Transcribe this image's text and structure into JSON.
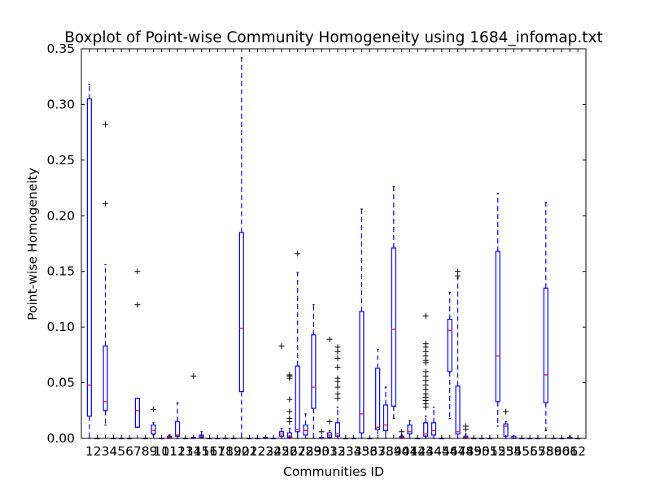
{
  "chart_data": {
    "type": "boxplot",
    "title": "Boxplot of Point-wise Community Homogeneity using 1684_infomap.txt",
    "xlabel": "Communities ID",
    "ylabel": "Point-wise Homogeneity",
    "ylim": [
      0,
      0.35
    ],
    "yticks": [
      "0.00",
      "0.05",
      "0.10",
      "0.15",
      "0.20",
      "0.25",
      "0.30",
      "0.35"
    ],
    "colors": {
      "box": "#0000ff",
      "median": "#ff0000",
      "flier": "#000000"
    },
    "categories": [
      "1",
      "2",
      "3",
      "4",
      "5",
      "6",
      "7",
      "8",
      "9",
      "10",
      "11",
      "12",
      "13",
      "14",
      "15",
      "16",
      "17",
      "18",
      "19",
      "20",
      "21",
      "22",
      "23",
      "24",
      "25",
      "26",
      "27",
      "28",
      "29",
      "30",
      "31",
      "32",
      "33",
      "34",
      "35",
      "36",
      "37",
      "38",
      "39",
      "40",
      "41",
      "42",
      "43",
      "44",
      "45",
      "46",
      "47",
      "48",
      "49",
      "50",
      "51",
      "52",
      "53",
      "54",
      "55",
      "56",
      "57",
      "58",
      "59",
      "60",
      "61",
      "62"
    ],
    "boxes": [
      {
        "id": "1",
        "whislo": 0.0,
        "q1": 0.02,
        "med": 0.048,
        "q3": 0.305,
        "whishi": 0.318,
        "fliers": []
      },
      {
        "id": "2",
        "whislo": 0.0,
        "q1": 0.0,
        "med": 0.0,
        "q3": 0.0,
        "whishi": 0.0,
        "fliers": []
      },
      {
        "id": "3",
        "whislo": 0.012,
        "q1": 0.025,
        "med": 0.033,
        "q3": 0.083,
        "whishi": 0.156,
        "fliers": [
          0.211,
          0.282
        ]
      },
      {
        "id": "4",
        "whislo": 0.0,
        "q1": 0.0,
        "med": 0.0,
        "q3": 0.0,
        "whishi": 0.0,
        "fliers": []
      },
      {
        "id": "5",
        "whislo": 0.0,
        "q1": 0.0,
        "med": 0.0,
        "q3": 0.0,
        "whishi": 0.0,
        "fliers": []
      },
      {
        "id": "6",
        "whislo": 0.0,
        "q1": 0.0,
        "med": 0.0,
        "q3": 0.0,
        "whishi": 0.0,
        "fliers": []
      },
      {
        "id": "7",
        "whislo": 0.01,
        "q1": 0.01,
        "med": 0.025,
        "q3": 0.036,
        "whishi": 0.036,
        "fliers": [
          0.12,
          0.15
        ]
      },
      {
        "id": "8",
        "whislo": 0.0,
        "q1": 0.0,
        "med": 0.0,
        "q3": 0.0,
        "whishi": 0.0,
        "fliers": []
      },
      {
        "id": "9",
        "whislo": 0.003,
        "q1": 0.004,
        "med": 0.007,
        "q3": 0.012,
        "whishi": 0.014,
        "fliers": [
          0.026
        ]
      },
      {
        "id": "10",
        "whislo": 0.0,
        "q1": 0.0,
        "med": 0.0,
        "q3": 0.0,
        "whishi": 0.0,
        "fliers": []
      },
      {
        "id": "11",
        "whislo": 0.0,
        "q1": 0.0,
        "med": 0.001,
        "q3": 0.002,
        "whishi": 0.003,
        "fliers": []
      },
      {
        "id": "12",
        "whislo": 0.0,
        "q1": 0.002,
        "med": 0.003,
        "q3": 0.015,
        "whishi": 0.032,
        "fliers": []
      },
      {
        "id": "13",
        "whislo": 0.0,
        "q1": 0.0,
        "med": 0.0,
        "q3": 0.0,
        "whishi": 0.0,
        "fliers": []
      },
      {
        "id": "14",
        "whislo": 0.0,
        "q1": 0.0,
        "med": 0.0,
        "q3": 0.001,
        "whishi": 0.001,
        "fliers": [
          0.056
        ]
      },
      {
        "id": "15",
        "whislo": 0.0,
        "q1": 0.001,
        "med": 0.002,
        "q3": 0.003,
        "whishi": 0.006,
        "fliers": []
      },
      {
        "id": "16",
        "whislo": 0.0,
        "q1": 0.0,
        "med": 0.0,
        "q3": 0.0,
        "whishi": 0.0,
        "fliers": []
      },
      {
        "id": "17",
        "whislo": 0.0,
        "q1": 0.0,
        "med": 0.0,
        "q3": 0.0,
        "whishi": 0.0,
        "fliers": []
      },
      {
        "id": "18",
        "whislo": 0.0,
        "q1": 0.0,
        "med": 0.0,
        "q3": 0.0,
        "whishi": 0.0,
        "fliers": []
      },
      {
        "id": "19",
        "whislo": 0.0,
        "q1": 0.0,
        "med": 0.0,
        "q3": 0.0,
        "whishi": 0.0,
        "fliers": []
      },
      {
        "id": "20",
        "whislo": 0.0,
        "q1": 0.042,
        "med": 0.099,
        "q3": 0.185,
        "whishi": 0.342,
        "fliers": []
      },
      {
        "id": "21",
        "whislo": 0.0,
        "q1": 0.0,
        "med": 0.0,
        "q3": 0.0,
        "whishi": 0.0,
        "fliers": []
      },
      {
        "id": "22",
        "whislo": 0.0,
        "q1": 0.0,
        "med": 0.0,
        "q3": 0.0,
        "whishi": 0.0,
        "fliers": []
      },
      {
        "id": "23",
        "whislo": 0.0,
        "q1": 0.0,
        "med": 0.0,
        "q3": 0.001,
        "whishi": 0.001,
        "fliers": []
      },
      {
        "id": "24",
        "whislo": 0.0,
        "q1": 0.0,
        "med": 0.0,
        "q3": 0.0,
        "whishi": 0.0,
        "fliers": []
      },
      {
        "id": "25",
        "whislo": 0.0,
        "q1": 0.002,
        "med": 0.004,
        "q3": 0.006,
        "whishi": 0.009,
        "fliers": [
          0.083
        ]
      },
      {
        "id": "26",
        "whislo": 0.0,
        "q1": 0.001,
        "med": 0.002,
        "q3": 0.005,
        "whishi": 0.009,
        "fliers": [
          0.015,
          0.018,
          0.024,
          0.035,
          0.054,
          0.056,
          0.057
        ]
      },
      {
        "id": "27",
        "whislo": 0.0,
        "q1": 0.006,
        "med": 0.008,
        "q3": 0.065,
        "whishi": 0.149,
        "fliers": [
          0.166
        ]
      },
      {
        "id": "28",
        "whislo": 0.0,
        "q1": 0.003,
        "med": 0.007,
        "q3": 0.012,
        "whishi": 0.022,
        "fliers": []
      },
      {
        "id": "29",
        "whislo": 0.0,
        "q1": 0.027,
        "med": 0.046,
        "q3": 0.093,
        "whishi": 0.12,
        "fliers": []
      },
      {
        "id": "30",
        "whislo": 0.0,
        "q1": 0.0,
        "med": 0.0,
        "q3": 0.001,
        "whishi": 0.001,
        "fliers": [
          0.006
        ]
      },
      {
        "id": "31",
        "whislo": 0.0,
        "q1": 0.001,
        "med": 0.003,
        "q3": 0.005,
        "whishi": 0.007,
        "fliers": [
          0.015,
          0.089
        ]
      },
      {
        "id": "32",
        "whislo": 0.0,
        "q1": 0.002,
        "med": 0.004,
        "q3": 0.014,
        "whishi": 0.028,
        "fliers": [
          0.036,
          0.04,
          0.046,
          0.051,
          0.054,
          0.064,
          0.072,
          0.078,
          0.082
        ]
      },
      {
        "id": "33",
        "whislo": 0.0,
        "q1": 0.0,
        "med": 0.0,
        "q3": 0.0,
        "whishi": 0.0,
        "fliers": []
      },
      {
        "id": "34",
        "whislo": 0.0,
        "q1": 0.0,
        "med": 0.0,
        "q3": 0.0,
        "whishi": 0.0,
        "fliers": []
      },
      {
        "id": "35",
        "whislo": 0.0,
        "q1": 0.005,
        "med": 0.022,
        "q3": 0.114,
        "whishi": 0.206,
        "fliers": []
      },
      {
        "id": "36",
        "whislo": 0.0,
        "q1": 0.0,
        "med": 0.0,
        "q3": 0.0,
        "whishi": 0.0,
        "fliers": []
      },
      {
        "id": "37",
        "whislo": 0.0,
        "q1": 0.008,
        "med": 0.01,
        "q3": 0.063,
        "whishi": 0.08,
        "fliers": []
      },
      {
        "id": "38",
        "whislo": 0.0,
        "q1": 0.007,
        "med": 0.012,
        "q3": 0.03,
        "whishi": 0.046,
        "fliers": []
      },
      {
        "id": "39",
        "whislo": 0.018,
        "q1": 0.029,
        "med": 0.098,
        "q3": 0.171,
        "whishi": 0.226,
        "fliers": []
      },
      {
        "id": "40",
        "whislo": 0.0,
        "q1": 0.0,
        "med": 0.001,
        "q3": 0.002,
        "whishi": 0.003,
        "fliers": [
          0.006
        ]
      },
      {
        "id": "41",
        "whislo": 0.0,
        "q1": 0.004,
        "med": 0.006,
        "q3": 0.012,
        "whishi": 0.016,
        "fliers": []
      },
      {
        "id": "42",
        "whislo": 0.0,
        "q1": 0.0,
        "med": 0.0,
        "q3": 0.0,
        "whishi": 0.0,
        "fliers": []
      },
      {
        "id": "43",
        "whislo": 0.0,
        "q1": 0.002,
        "med": 0.004,
        "q3": 0.014,
        "whishi": 0.02,
        "fliers": [
          0.028,
          0.031,
          0.034,
          0.037,
          0.04,
          0.044,
          0.048,
          0.052,
          0.056,
          0.06,
          0.068,
          0.07,
          0.074,
          0.078,
          0.082,
          0.085,
          0.11
        ]
      },
      {
        "id": "44",
        "whislo": 0.0,
        "q1": 0.003,
        "med": 0.007,
        "q3": 0.014,
        "whishi": 0.028,
        "fliers": []
      },
      {
        "id": "45",
        "whislo": 0.0,
        "q1": 0.0,
        "med": 0.0,
        "q3": 0.0,
        "whishi": 0.0,
        "fliers": []
      },
      {
        "id": "46",
        "whislo": 0.018,
        "q1": 0.06,
        "med": 0.097,
        "q3": 0.107,
        "whishi": 0.131,
        "fliers": []
      },
      {
        "id": "47",
        "whislo": 0.0,
        "q1": 0.004,
        "med": 0.006,
        "q3": 0.047,
        "whishi": 0.144,
        "fliers": [
          0.146,
          0.15
        ]
      },
      {
        "id": "48",
        "whislo": 0.0,
        "q1": 0.0,
        "med": 0.001,
        "q3": 0.002,
        "whishi": 0.004,
        "fliers": [
          0.008,
          0.011
        ]
      },
      {
        "id": "49",
        "whislo": 0.0,
        "q1": 0.0,
        "med": 0.0,
        "q3": 0.0,
        "whishi": 0.0,
        "fliers": []
      },
      {
        "id": "50",
        "whislo": 0.0,
        "q1": 0.0,
        "med": 0.0,
        "q3": 0.0,
        "whishi": 0.0,
        "fliers": []
      },
      {
        "id": "51",
        "whislo": 0.0,
        "q1": 0.0,
        "med": 0.0,
        "q3": 0.0,
        "whishi": 0.0,
        "fliers": []
      },
      {
        "id": "52",
        "whislo": 0.011,
        "q1": 0.033,
        "med": 0.074,
        "q3": 0.168,
        "whishi": 0.22,
        "fliers": []
      },
      {
        "id": "53",
        "whislo": 0.0,
        "q1": 0.002,
        "med": 0.011,
        "q3": 0.013,
        "whishi": 0.015,
        "fliers": [
          0.024
        ]
      },
      {
        "id": "54",
        "whislo": 0.0,
        "q1": 0.0,
        "med": 0.0,
        "q3": 0.002,
        "whishi": 0.002,
        "fliers": []
      },
      {
        "id": "55",
        "whislo": 0.0,
        "q1": 0.0,
        "med": 0.0,
        "q3": 0.0,
        "whishi": 0.0,
        "fliers": []
      },
      {
        "id": "56",
        "whislo": 0.0,
        "q1": 0.0,
        "med": 0.0,
        "q3": 0.0,
        "whishi": 0.0,
        "fliers": []
      },
      {
        "id": "57",
        "whislo": 0.0,
        "q1": 0.0,
        "med": 0.0,
        "q3": 0.0,
        "whishi": 0.0,
        "fliers": []
      },
      {
        "id": "58",
        "whislo": 0.007,
        "q1": 0.032,
        "med": 0.057,
        "q3": 0.135,
        "whishi": 0.212,
        "fliers": []
      },
      {
        "id": "59",
        "whislo": 0.0,
        "q1": 0.0,
        "med": 0.0,
        "q3": 0.0,
        "whishi": 0.0,
        "fliers": []
      },
      {
        "id": "60",
        "whislo": 0.0,
        "q1": 0.0,
        "med": 0.0,
        "q3": 0.0,
        "whishi": 0.0,
        "fliers": []
      },
      {
        "id": "61",
        "whislo": 0.0,
        "q1": 0.0,
        "med": 0.0,
        "q3": 0.001,
        "whishi": 0.002,
        "fliers": []
      },
      {
        "id": "62",
        "whislo": 0.0,
        "q1": 0.0,
        "med": 0.0,
        "q3": 0.0,
        "whishi": 0.0,
        "fliers": []
      }
    ]
  }
}
